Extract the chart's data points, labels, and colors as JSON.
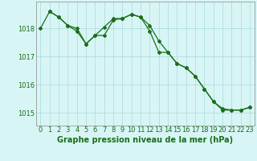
{
  "line1_x": [
    0,
    1,
    2,
    3,
    4,
    5,
    6,
    7,
    8,
    9,
    10,
    11,
    12,
    13,
    14,
    15,
    16,
    17,
    18,
    19,
    20,
    21,
    22,
    23
  ],
  "line1_y": [
    1018.0,
    1018.6,
    1018.4,
    1018.1,
    1017.9,
    1017.45,
    1017.75,
    1018.05,
    1018.35,
    1018.35,
    1018.5,
    1018.4,
    1018.1,
    1017.55,
    1017.15,
    1016.75,
    1016.6,
    1016.3,
    1015.85,
    1015.4,
    1015.15,
    1015.1,
    1015.1,
    1015.2
  ],
  "line2_x": [
    1,
    2,
    3,
    4,
    5,
    6,
    7,
    8,
    9,
    10,
    11,
    12,
    13,
    14,
    15,
    16,
    17,
    18,
    19,
    20,
    21,
    22,
    23
  ],
  "line2_y": [
    1018.6,
    1018.4,
    1018.1,
    1018.0,
    1017.45,
    1017.75,
    1017.75,
    1018.3,
    1018.35,
    1018.5,
    1018.4,
    1017.9,
    1017.15,
    1017.15,
    1016.75,
    1016.6,
    1016.3,
    1015.85,
    1015.4,
    1015.1,
    1015.1,
    1015.1,
    1015.2
  ],
  "line_color": "#1a6e1a",
  "marker": "D",
  "marker_size": 2.0,
  "linewidth": 0.9,
  "xlabel": "Graphe pression niveau de la mer (hPa)",
  "ylim": [
    1014.55,
    1018.95
  ],
  "xlim": [
    -0.5,
    23.5
  ],
  "yticks": [
    1015,
    1016,
    1017,
    1018
  ],
  "xticks": [
    0,
    1,
    2,
    3,
    4,
    5,
    6,
    7,
    8,
    9,
    10,
    11,
    12,
    13,
    14,
    15,
    16,
    17,
    18,
    19,
    20,
    21,
    22,
    23
  ],
  "background_color": "#d8f5f5",
  "grid_color": "#b0dede",
  "xlabel_fontsize": 7.0,
  "tick_fontsize": 6.0,
  "xlabel_color": "#1a6e1a",
  "tick_color": "#1a6e1a",
  "spine_color": "#888888"
}
